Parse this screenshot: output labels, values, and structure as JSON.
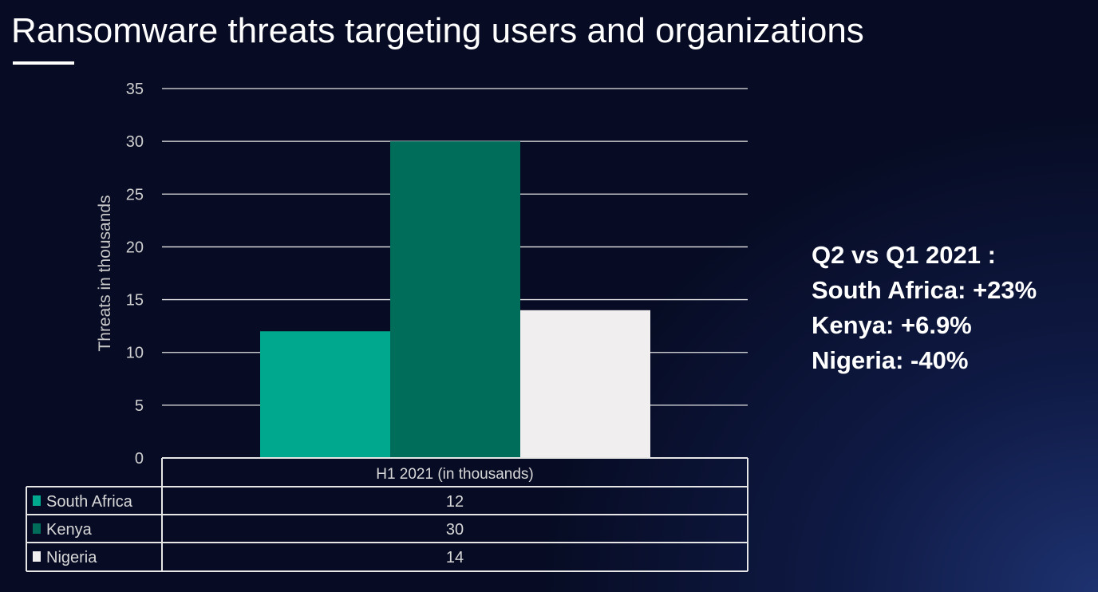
{
  "title": "Ransomware threats targeting users and organizations",
  "note": {
    "lines": [
      "Q2 vs Q1 2021 :",
      "South Africa: +23%",
      "Kenya: +6.9%",
      "Nigeria: -40%"
    ]
  },
  "chart_data": {
    "type": "bar",
    "title": "",
    "xlabel": "",
    "ylabel": "Threats in thousands",
    "ylim": [
      0,
      35
    ],
    "yticks": [
      0,
      5,
      10,
      15,
      20,
      25,
      30,
      35
    ],
    "grid": true,
    "categories": [
      "H1 2021 (in thousands)"
    ],
    "series": [
      {
        "name": "South Africa",
        "values": [
          12
        ],
        "color": "#00a88e"
      },
      {
        "name": "Kenya",
        "values": [
          30
        ],
        "color": "#006d5b"
      },
      {
        "name": "Nigeria",
        "values": [
          14
        ],
        "color": "#f0eeef"
      }
    ],
    "legend": "data-table-below"
  }
}
